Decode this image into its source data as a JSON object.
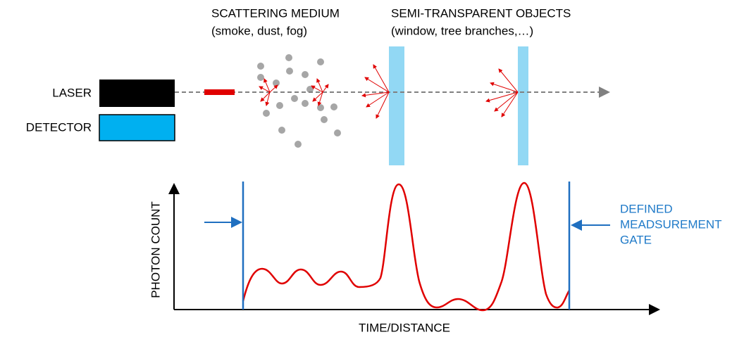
{
  "header": {
    "medium_title": "SCATTERING MEDIUM",
    "medium_examples": "(smoke, dust, fog)",
    "objects_title": "SEMI-TRANSPARENT OBJECTS",
    "objects_examples": "(window, tree branches,…)"
  },
  "devices": {
    "laser": "LASER",
    "detector": "DETECTOR"
  },
  "plot": {
    "y_label": "PHOTON COUNT",
    "x_label": "TIME/DISTANCE",
    "gate_lines": [
      "DEFINED",
      "MEADSUREMENT",
      "GATE"
    ]
  }
}
